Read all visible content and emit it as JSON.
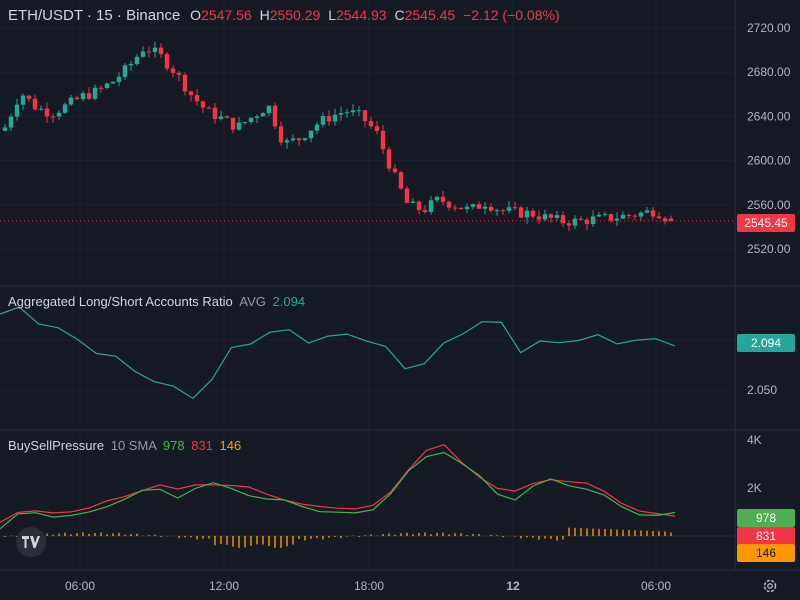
{
  "header": {
    "symbol": "ETH/USDT · 15 · Binance",
    "o_label": "O",
    "o_value": "2547.56",
    "h_label": "H",
    "h_value": "2550.29",
    "l_label": "L",
    "l_value": "2544.93",
    "c_label": "C",
    "c_value": "2545.45",
    "change": "−2.12 (−0.08%)"
  },
  "colors": {
    "background": "#161a25",
    "up": "#22ab94",
    "down": "#f23645",
    "ratio_line": "#26a69a",
    "buy_line": "#4caf50",
    "sell_line": "#f23645",
    "pressure_hist": "#ff9800"
  },
  "price_tag": "2545.45",
  "ratio_panel": {
    "title": "Aggregated Long/Short Accounts Ratio",
    "avg_label": "AVG",
    "avg_value": "2.094",
    "tag": "2.094"
  },
  "pressure_panel": {
    "title": "BuySellPressure",
    "sma_label": "10 SMA",
    "v1": "978",
    "v2": "831",
    "v3": "146",
    "tag1": "978",
    "tag2": "831",
    "tag3": "146"
  },
  "chart_data": [
    {
      "type": "candlestick",
      "title": "ETH/USDT · 15 · Binance",
      "y_ticks": [
        "2720.00",
        "2680.00",
        "2640.00",
        "2600.00",
        "2560.00",
        "2520.00"
      ],
      "ylim": [
        2500,
        2725
      ],
      "x_ticks": [
        "06:00",
        "12:00",
        "18:00",
        "12",
        "06:00"
      ],
      "last_price": 2545.45,
      "ohlc": {
        "open": 2547.56,
        "high": 2550.29,
        "low": 2544.93,
        "close": 2545.45
      },
      "close_path": [
        [
          0,
          2630
        ],
        [
          1,
          2662
        ],
        [
          2,
          2648
        ],
        [
          3,
          2643
        ],
        [
          4,
          2650
        ],
        [
          5,
          2658
        ],
        [
          6,
          2663
        ],
        [
          7,
          2672
        ],
        [
          8,
          2685
        ],
        [
          9,
          2703
        ],
        [
          10,
          2695
        ],
        [
          11,
          2680
        ],
        [
          12,
          2660
        ],
        [
          13,
          2645
        ],
        [
          14,
          2638
        ],
        [
          15,
          2630
        ],
        [
          16,
          2640
        ],
        [
          17,
          2650
        ],
        [
          18,
          2615
        ],
        [
          19,
          2620
        ],
        [
          20,
          2632
        ],
        [
          21,
          2640
        ],
        [
          22,
          2645
        ],
        [
          23,
          2640
        ],
        [
          24,
          2625
        ],
        [
          25,
          2590
        ],
        [
          26,
          2560
        ],
        [
          27,
          2555
        ],
        [
          28,
          2565
        ],
        [
          29,
          2560
        ],
        [
          30,
          2555
        ],
        [
          31,
          2562
        ],
        [
          32,
          2555
        ],
        [
          33,
          2553
        ],
        [
          34,
          2552
        ],
        [
          35,
          2548
        ],
        [
          36,
          2545
        ],
        [
          37,
          2545
        ],
        [
          38,
          2547
        ],
        [
          39,
          2548
        ],
        [
          40,
          2550
        ],
        [
          41,
          2552
        ],
        [
          42,
          2555
        ],
        [
          43,
          2545
        ]
      ],
      "grid": true
    },
    {
      "type": "line",
      "title": "Aggregated Long/Short Accounts Ratio",
      "y_ticks": [
        "2.100",
        "2.050"
      ],
      "ylim": [
        2.02,
        2.14
      ],
      "series": [
        {
          "name": "AVG",
          "values": [
            2.126,
            2.13,
            2.12,
            2.11,
            2.1,
            2.09,
            2.08,
            2.07,
            2.06,
            2.05,
            2.045,
            2.06,
            2.09,
            2.1,
            2.105,
            2.11,
            2.1,
            2.1,
            2.108,
            2.1,
            2.09,
            2.075,
            2.075,
            2.095,
            2.11,
            2.115,
            2.118,
            2.09,
            2.095,
            2.1,
            2.1,
            2.102,
            2.1,
            2.098,
            2.1,
            2.094
          ]
        }
      ],
      "last_value": 2.094,
      "grid": true
    },
    {
      "type": "line",
      "title": "BuySellPressure",
      "y_ticks": [
        "4K",
        "2K"
      ],
      "ylim": [
        -1000,
        4000
      ],
      "series": [
        {
          "name": "10 SMA",
          "values": [
            978
          ]
        },
        {
          "name": "",
          "values": [
            831
          ]
        },
        {
          "name": "",
          "values": [
            146
          ]
        }
      ],
      "grid": true
    }
  ]
}
